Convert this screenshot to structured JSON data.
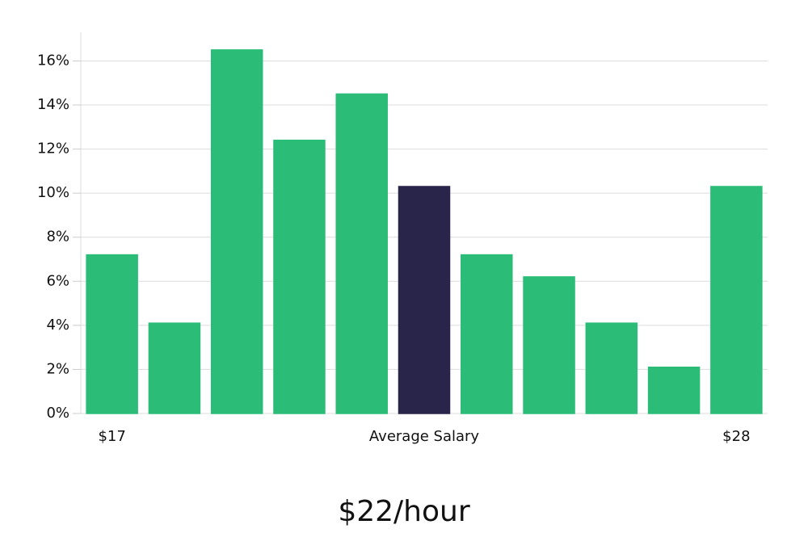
{
  "chart_data": {
    "type": "bar",
    "categories": [
      "$17",
      null,
      null,
      null,
      null,
      "Average Salary",
      null,
      null,
      null,
      null,
      "$28"
    ],
    "values": [
      7.2,
      4.1,
      16.5,
      12.4,
      14.5,
      10.3,
      7.2,
      6.2,
      4.1,
      2.1,
      10.3
    ],
    "colors": [
      "#2bbd77",
      "#2bbd77",
      "#2bbd77",
      "#2bbd77",
      "#2bbd77",
      "#29244a",
      "#2bbd77",
      "#2bbd77",
      "#2bbd77",
      "#2bbd77",
      "#2bbd77"
    ],
    "ylim": [
      0,
      17.3
    ],
    "yticks": [
      {
        "value": 0,
        "label": "0%"
      },
      {
        "value": 2,
        "label": "2%"
      },
      {
        "value": 4,
        "label": "4%"
      },
      {
        "value": 6,
        "label": "6%"
      },
      {
        "value": 8,
        "label": "8%"
      },
      {
        "value": 10,
        "label": "10%"
      },
      {
        "value": 12,
        "label": "12%"
      },
      {
        "value": 14,
        "label": "14%"
      },
      {
        "value": 16,
        "label": "16%"
      }
    ],
    "grid": true,
    "caption": "$22/hour"
  }
}
